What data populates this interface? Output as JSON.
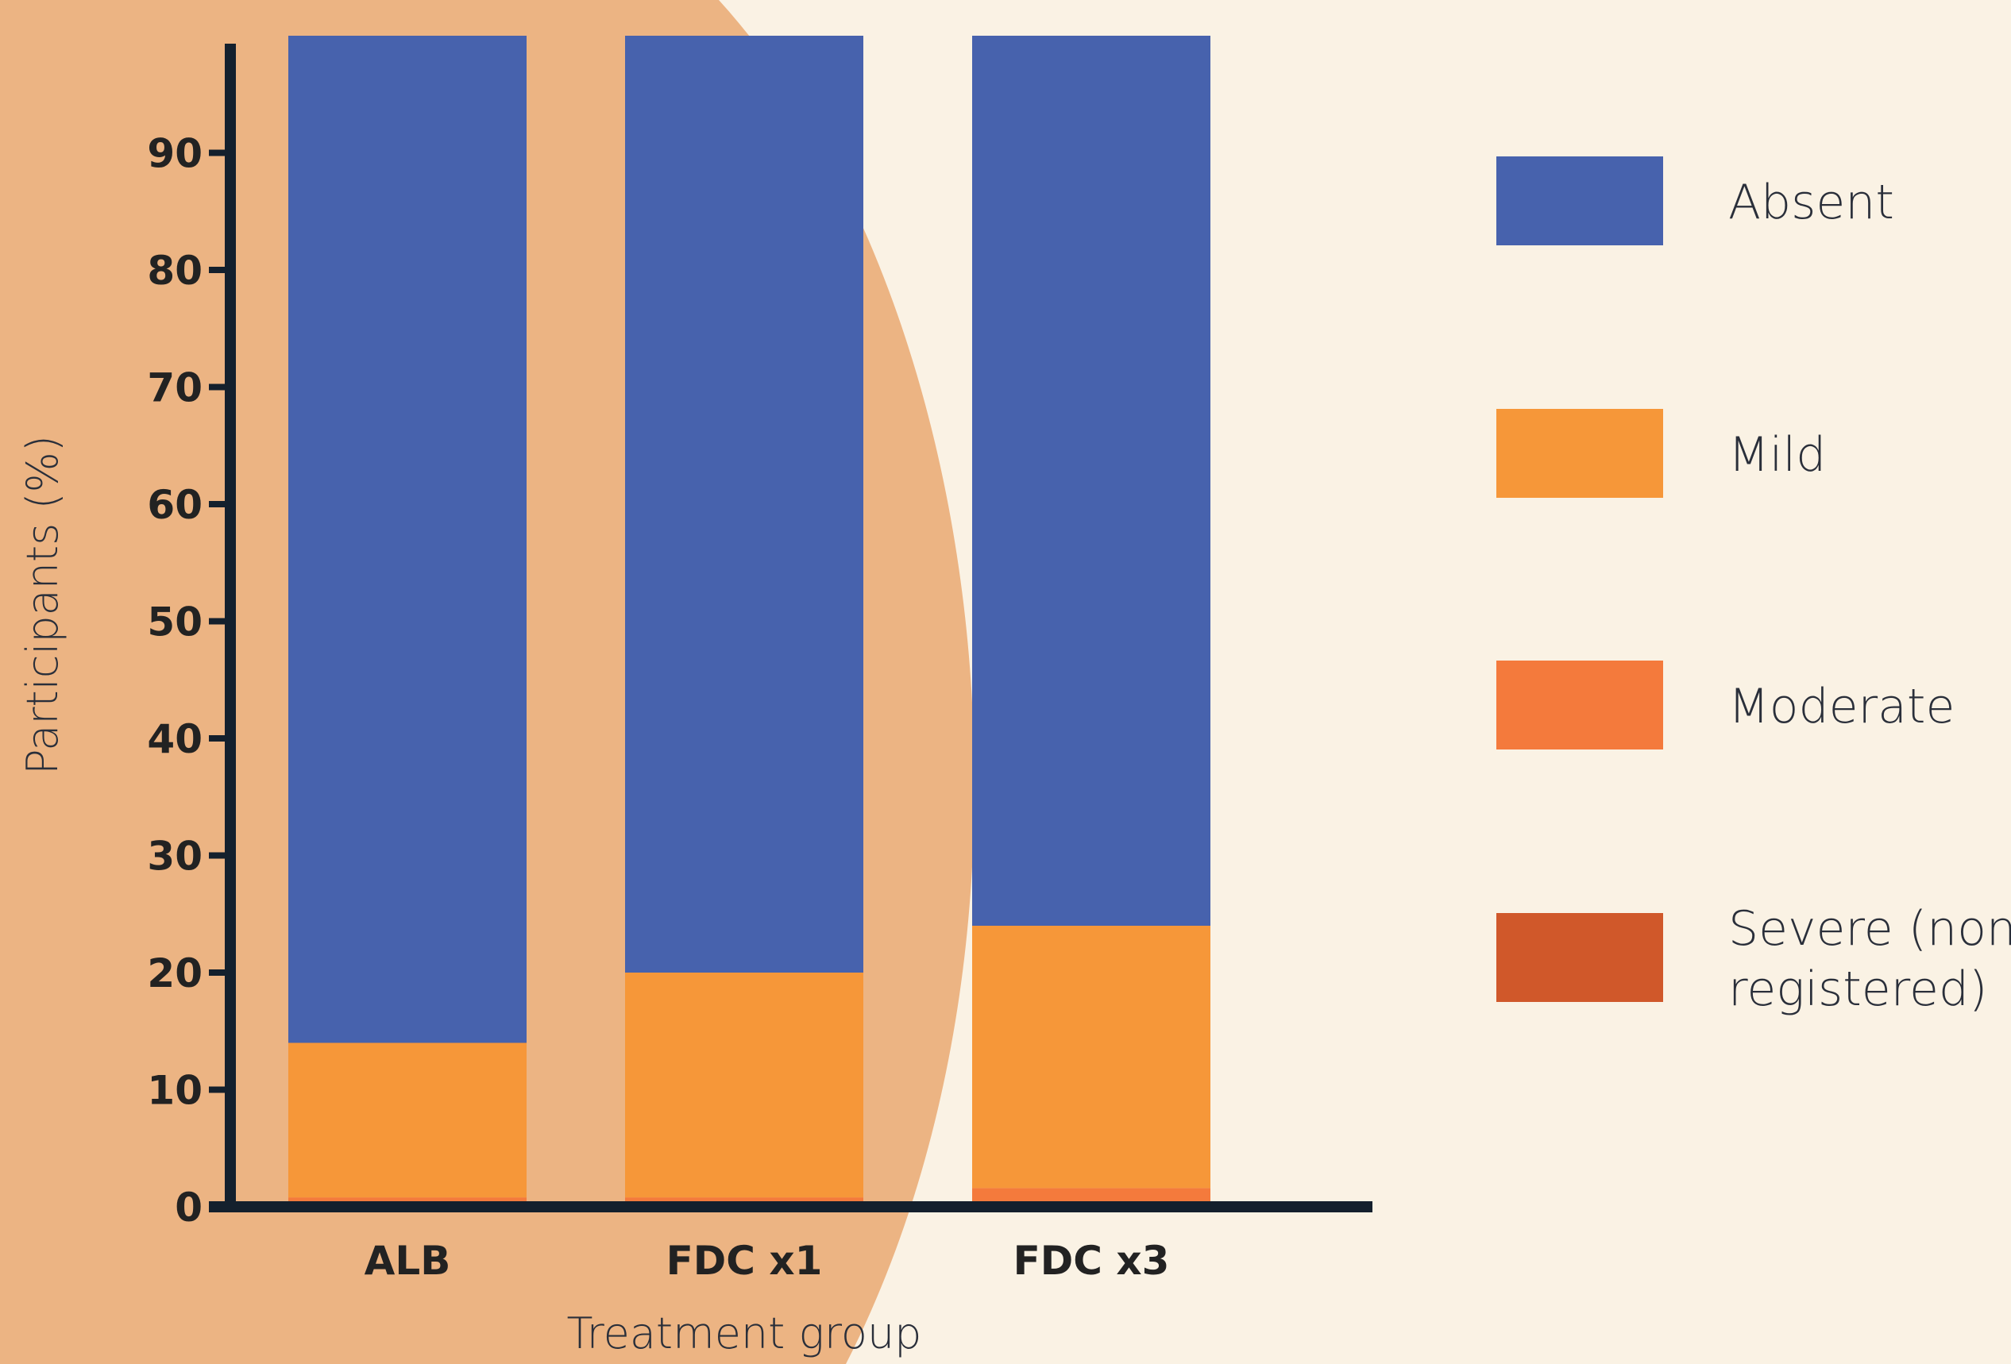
{
  "chart_data": {
    "type": "bar",
    "stacked": true,
    "categories": [
      "ALB",
      "FDC x1",
      "FDC x3"
    ],
    "xlabel": "Treatment group",
    "ylabel": "Participants (%)",
    "ylim": [
      0,
      100
    ],
    "yticks": [
      0,
      10,
      20,
      30,
      40,
      50,
      60,
      70,
      80,
      90
    ],
    "grid": false,
    "legend_position": "right",
    "series": [
      {
        "name": "Severe (non registered)",
        "label_lines": [
          "Severe (non",
          "registered)"
        ],
        "color": "#d0582a",
        "values": [
          0,
          0,
          0
        ]
      },
      {
        "name": "Moderate",
        "label_lines": [
          "Moderate"
        ],
        "color": "#f47a3c",
        "values": [
          0.8,
          0.8,
          1.6
        ]
      },
      {
        "name": "Mild",
        "label_lines": [
          "Mild"
        ],
        "color": "#f69739",
        "values": [
          13.2,
          19.2,
          22.4
        ]
      },
      {
        "name": "Absent",
        "label_lines": [
          "Absent"
        ],
        "color": "#4762ad",
        "values": [
          86.0,
          80.0,
          76.0
        ]
      }
    ],
    "legend_order": [
      "Absent",
      "Mild",
      "Moderate",
      "Severe (non registered)"
    ]
  },
  "colors": {
    "background": "#faf2e4",
    "backdrop_shape": "#ecb483",
    "axis": "#14202d"
  }
}
